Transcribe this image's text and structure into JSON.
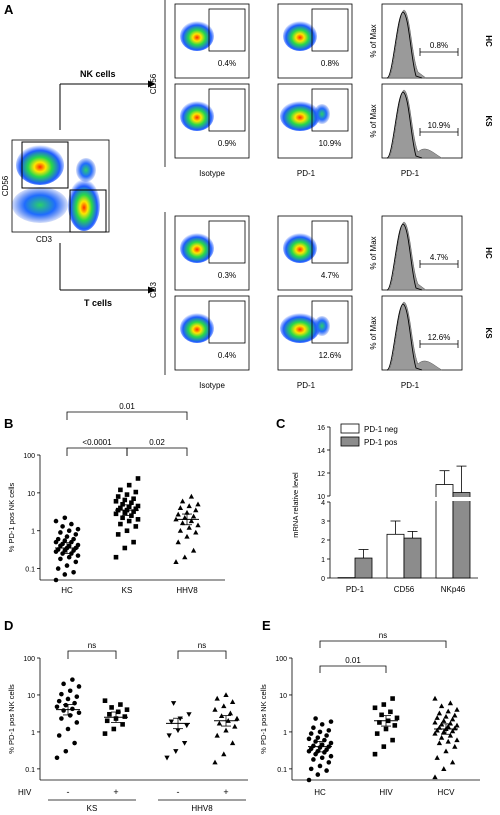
{
  "panel_letters": {
    "A": "A",
    "B": "B",
    "C": "C",
    "D": "D",
    "E": "E"
  },
  "panel_a": {
    "gate_xlabel": "CD3",
    "gate_ylabel": "CD56",
    "nk_label": "NK cells",
    "t_label": "T cells",
    "nk_ylabel": "CD56",
    "t_ylabel": "CD3",
    "col_labels": [
      "Isotype",
      "PD-1",
      "PD-1"
    ],
    "hist_ylabel": "% of Max",
    "groups": [
      "HC",
      "KS"
    ],
    "nk_rows": [
      {
        "group": "HC",
        "isotype": "0.4%",
        "pd1": "0.8%",
        "hist": "0.8%"
      },
      {
        "group": "KS",
        "isotype": "0.9%",
        "pd1": "10.9%",
        "hist": "10.9%"
      }
    ],
    "t_rows": [
      {
        "group": "HC",
        "isotype": "0.3%",
        "pd1": "4.7%",
        "hist": "4.7%"
      },
      {
        "group": "KS",
        "isotype": "0.4%",
        "pd1": "12.6%",
        "hist": "12.6%"
      }
    ]
  },
  "chart_data": [
    {
      "panel": "B",
      "type": "scatter",
      "ylabel": "% PD-1 pos NK cells",
      "yscale": "log",
      "ylim": [
        0.05,
        100
      ],
      "ytick_labels": [
        "0.1",
        "1",
        "10",
        "100"
      ],
      "categories": [
        "HC",
        "KS",
        "HHV8"
      ],
      "series": [
        {
          "marker": "circle",
          "median": 0.35,
          "values": [
            0.05,
            0.07,
            0.08,
            0.1,
            0.12,
            0.15,
            0.18,
            0.2,
            0.22,
            0.25,
            0.25,
            0.28,
            0.3,
            0.3,
            0.32,
            0.35,
            0.35,
            0.4,
            0.4,
            0.42,
            0.45,
            0.5,
            0.5,
            0.55,
            0.6,
            0.6,
            0.7,
            0.8,
            0.9,
            1.0,
            1.1,
            1.3,
            1.5,
            1.8,
            2.2
          ]
        },
        {
          "marker": "square",
          "median": 3.5,
          "values": [
            0.2,
            0.35,
            0.5,
            0.8,
            1.0,
            1.3,
            1.5,
            1.8,
            2.0,
            2.2,
            2.5,
            2.8,
            3.0,
            3.2,
            3.5,
            3.5,
            3.8,
            4.0,
            4.3,
            4.5,
            5.0,
            5.5,
            6.0,
            6.5,
            7.0,
            8.0,
            9.0,
            10.5,
            12,
            16,
            24
          ]
        },
        {
          "marker": "triangle",
          "median": 2.0,
          "values": [
            0.15,
            0.2,
            0.3,
            0.5,
            0.7,
            0.9,
            1.0,
            1.2,
            1.4,
            1.6,
            1.8,
            2.0,
            2.2,
            2.4,
            2.7,
            3.0,
            3.5,
            4.0,
            4.5,
            5.0,
            6.0,
            8.0
          ]
        }
      ],
      "comparisons": [
        {
          "from": "HC",
          "to": "KS",
          "label": "<0.0001"
        },
        {
          "from": "KS",
          "to": "HHV8",
          "label": "0.02"
        },
        {
          "from": "HC",
          "to": "HHV8",
          "label": "0.01"
        }
      ]
    },
    {
      "panel": "C",
      "type": "bar",
      "ylabel": "mRNA relative level",
      "ytick_labels": [
        "0",
        "1",
        "2",
        "3",
        "4",
        "10",
        "12",
        "14",
        "16"
      ],
      "categories": [
        "PD-1",
        "CD56",
        "NKp46"
      ],
      "legend": [
        "PD-1 neg",
        "PD-1 pos"
      ],
      "series": [
        {
          "name": "PD-1 neg",
          "color": "#ffffff",
          "values": [
            0.02,
            2.3,
            11.0
          ],
          "errors": [
            0,
            0.7,
            1.2
          ]
        },
        {
          "name": "PD-1 pos",
          "color": "#8c8c8c",
          "values": [
            1.05,
            2.1,
            10.3
          ],
          "errors": [
            0.45,
            0.35,
            2.3
          ]
        }
      ]
    },
    {
      "panel": "D",
      "type": "scatter",
      "ylabel": "% PD-1 pos NK cells",
      "yscale": "log",
      "ylim": [
        0.05,
        100
      ],
      "ytick_labels": [
        "0.1",
        "1",
        "10",
        "100"
      ],
      "hiv_label": "HIV",
      "categories": [
        "-",
        "+",
        "-",
        "+"
      ],
      "groups": [
        "KS",
        "HHV8"
      ],
      "series": [
        {
          "marker": "circle",
          "median": 4.0,
          "values": [
            0.2,
            0.3,
            0.5,
            0.8,
            1.2,
            1.8,
            2.3,
            2.8,
            3.3,
            3.8,
            4.2,
            4.8,
            5.3,
            6.0,
            6.8,
            7.8,
            9.0,
            10.5,
            13,
            17,
            20,
            26
          ]
        },
        {
          "marker": "square",
          "median": 2.5,
          "values": [
            0.9,
            1.2,
            1.6,
            2.0,
            2.3,
            2.6,
            3.0,
            3.5,
            4.0,
            4.6,
            5.5,
            7.0
          ]
        },
        {
          "marker": "triangle_down",
          "median": 1.7,
          "values": [
            0.2,
            0.3,
            0.5,
            0.8,
            1.1,
            1.5,
            1.9,
            2.3,
            3.0,
            6.0
          ]
        },
        {
          "marker": "triangle",
          "median": 2.0,
          "values": [
            0.15,
            0.25,
            0.5,
            0.8,
            1.1,
            1.4,
            1.7,
            2.0,
            2.3,
            2.7,
            3.2,
            4.0,
            5.0,
            6.5,
            8.0,
            10
          ]
        }
      ],
      "comparisons": [
        {
          "from": 0,
          "to": 1,
          "label": "ns"
        },
        {
          "from": 2,
          "to": 3,
          "label": "ns"
        }
      ]
    },
    {
      "panel": "E",
      "type": "scatter",
      "ylabel": "% PD-1 pos NK cells",
      "yscale": "log",
      "ylim": [
        0.05,
        100
      ],
      "ytick_labels": [
        "0.1",
        "1",
        "10",
        "100"
      ],
      "categories": [
        "HC",
        "HIV",
        "HCV"
      ],
      "series": [
        {
          "marker": "circle",
          "median": 0.4,
          "values": [
            0.05,
            0.07,
            0.09,
            0.1,
            0.12,
            0.15,
            0.18,
            0.2,
            0.22,
            0.25,
            0.28,
            0.3,
            0.3,
            0.33,
            0.35,
            0.38,
            0.4,
            0.42,
            0.45,
            0.5,
            0.55,
            0.6,
            0.65,
            0.7,
            0.8,
            0.9,
            1.0,
            1.1,
            1.3,
            1.6,
            1.9,
            2.3
          ]
        },
        {
          "marker": "square",
          "median": 2.0,
          "values": [
            0.25,
            0.4,
            0.6,
            0.9,
            1.2,
            1.5,
            1.8,
            2.0,
            2.4,
            2.9,
            3.5,
            4.5,
            5.5,
            8.0
          ]
        },
        {
          "marker": "triangle",
          "median": 1.2,
          "values": [
            0.06,
            0.1,
            0.15,
            0.2,
            0.3,
            0.4,
            0.5,
            0.55,
            0.6,
            0.7,
            0.8,
            0.9,
            1.0,
            1.05,
            1.1,
            1.2,
            1.25,
            1.3,
            1.4,
            1.5,
            1.6,
            1.7,
            1.8,
            2.0,
            2.2,
            2.4,
            2.6,
            2.8,
            3.2,
            3.6,
            4.0,
            5.0,
            6.0,
            8.0
          ]
        }
      ],
      "comparisons": [
        {
          "from": "HC",
          "to": "HIV",
          "label": "0.01"
        },
        {
          "from": "HC",
          "to": "HCV",
          "label": "ns"
        }
      ]
    }
  ]
}
